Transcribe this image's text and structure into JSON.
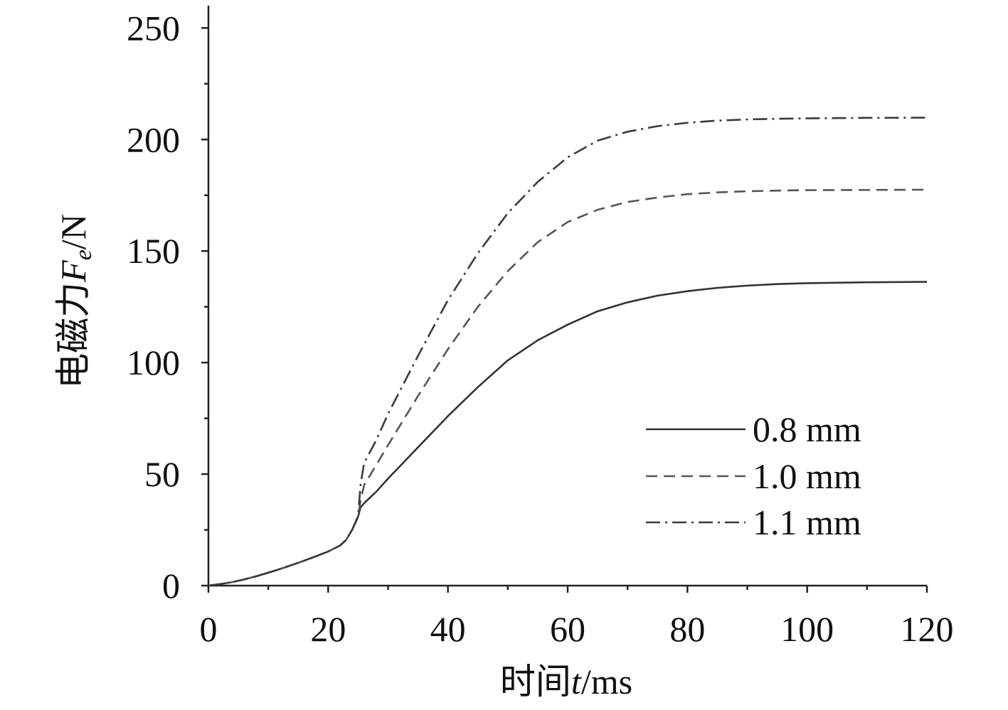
{
  "chart_data": {
    "type": "line",
    "title": "",
    "xlabel_prefix": "时间",
    "xlabel_var": "t",
    "xlabel_unit": "/ms",
    "ylabel_prefix": "电磁力",
    "ylabel_var": "F",
    "ylabel_sub": "e",
    "ylabel_unit": "/N",
    "xlim": [
      0,
      120
    ],
    "ylim": [
      0,
      260
    ],
    "xticks": [
      "0",
      "20",
      "40",
      "60",
      "80",
      "100",
      "120"
    ],
    "yticks": [
      "0",
      "50",
      "100",
      "150",
      "200",
      "250"
    ],
    "xtick_values": [
      0,
      20,
      40,
      60,
      80,
      100,
      120
    ],
    "ytick_values": [
      0,
      50,
      100,
      150,
      200,
      250
    ],
    "minor_step_x": 10,
    "minor_step_y": 25,
    "grid": false,
    "legend_position": "bottom-right",
    "series": [
      {
        "name": "0.8 mm",
        "dash": "solid",
        "color": "#333333",
        "x": [
          0,
          2,
          4,
          6,
          8,
          10,
          12,
          14,
          16,
          18,
          20,
          22,
          23,
          24,
          25,
          25.4,
          26,
          28,
          30,
          35,
          40,
          45,
          50,
          55,
          60,
          65,
          70,
          75,
          80,
          85,
          90,
          95,
          100,
          110,
          120
        ],
        "y": [
          0,
          0.7,
          1.6,
          2.8,
          4.2,
          5.8,
          7.5,
          9.3,
          11.2,
          13.2,
          15.3,
          18,
          20.5,
          25,
          31,
          35,
          37,
          42,
          48,
          62,
          76,
          89,
          101,
          110,
          117,
          123,
          127,
          130,
          132,
          133.5,
          134.5,
          135.2,
          135.6,
          136,
          136.2
        ]
      },
      {
        "name": "1.0 mm",
        "dash": "dash",
        "color": "#555555",
        "x": [
          0,
          2,
          4,
          6,
          8,
          10,
          12,
          14,
          16,
          18,
          20,
          22,
          23,
          24,
          25,
          25.4,
          26,
          28,
          30,
          35,
          40,
          45,
          50,
          55,
          60,
          65,
          70,
          75,
          80,
          85,
          90,
          95,
          100,
          110,
          120
        ],
        "y": [
          0,
          0.7,
          1.6,
          2.8,
          4.2,
          5.8,
          7.5,
          9.3,
          11.2,
          13.2,
          15.3,
          18,
          20.5,
          25,
          31,
          38,
          45,
          54,
          63,
          85,
          106,
          125,
          141,
          154,
          163,
          168.5,
          172,
          174,
          175.5,
          176.3,
          176.8,
          177.1,
          177.3,
          177.4,
          177.5
        ]
      },
      {
        "name": "1.1 mm",
        "dash": "dashdot",
        "color": "#3a3a3a",
        "x": [
          0,
          2,
          4,
          6,
          8,
          10,
          12,
          14,
          16,
          18,
          20,
          22,
          23,
          24,
          25,
          25.4,
          26,
          28,
          30,
          35,
          40,
          45,
          50,
          55,
          60,
          65,
          70,
          75,
          80,
          85,
          90,
          95,
          100,
          110,
          120
        ],
        "y": [
          0,
          0.7,
          1.6,
          2.8,
          4.2,
          5.8,
          7.5,
          9.3,
          11.2,
          13.2,
          15.3,
          18,
          20.5,
          25,
          31,
          45,
          55,
          65,
          77,
          103,
          128,
          149,
          167,
          181,
          192,
          199.5,
          203.5,
          206,
          207.5,
          208.5,
          209,
          209.3,
          209.5,
          209.7,
          209.8
        ]
      }
    ]
  }
}
